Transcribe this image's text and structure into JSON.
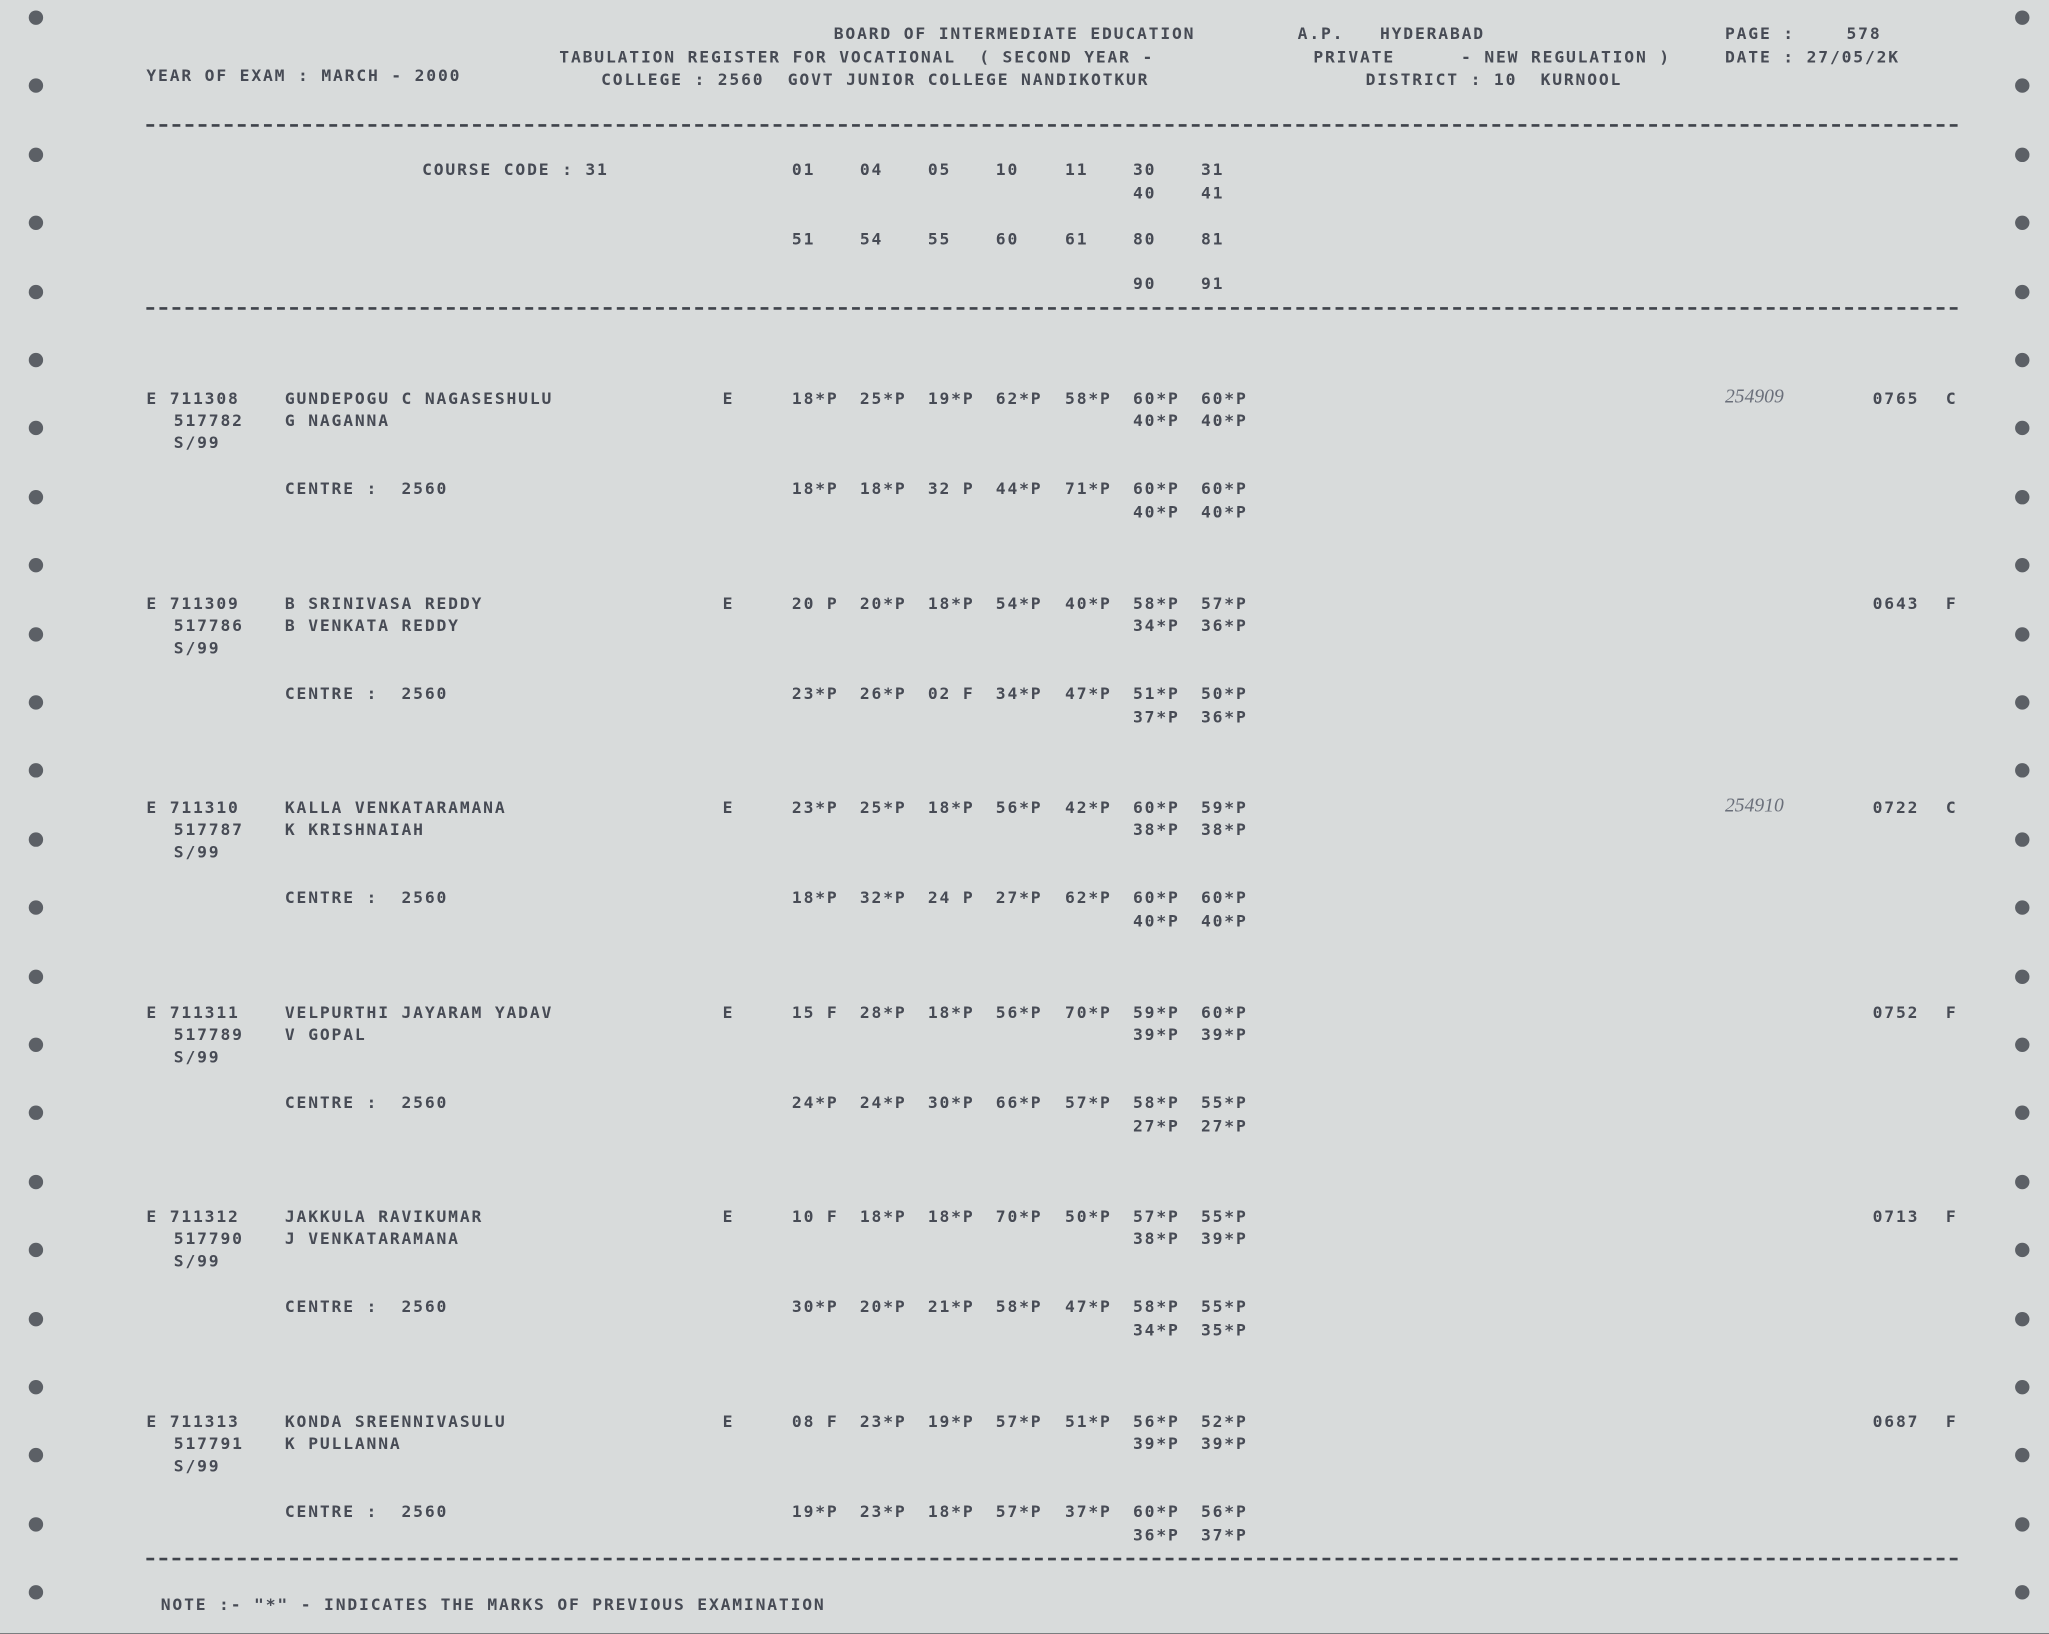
{
  "header": {
    "board": "BOARD OF INTERMEDIATE EDUCATION",
    "state": "A.P.",
    "city": "HYDERABAD",
    "page_label": "PAGE :",
    "page": "578",
    "register": "TABULATION REGISTER FOR VOCATIONAL  ( SECOND YEAR -",
    "mode": "PRIVATE",
    "regulation": "- NEW REGULATION )",
    "date": "DATE : 27/05/2K",
    "exam": "YEAR OF EXAM : MARCH - 2000",
    "college": "COLLEGE : 2560  GOVT JUNIOR COLLEGE NANDIKOTKUR",
    "district": "DISTRICT : 10  KURNOOL"
  },
  "course": {
    "label": "COURSE CODE : 31",
    "codes1": [
      "01",
      "04",
      "05",
      "10",
      "11",
      "30",
      "31"
    ],
    "codes1b": [
      "40",
      "41"
    ],
    "codes2": [
      "51",
      "54",
      "55",
      "60",
      "61",
      "80",
      "81"
    ],
    "codes2b": [
      "90",
      "91"
    ]
  },
  "students": [
    {
      "roll": "E 711308",
      "name": "GUNDEPOGU C NAGASESHULU",
      "hall": "517782",
      "father": "G NAGANNA",
      "session": "S/99",
      "medium": "E",
      "marks": [
        "18*P",
        "25*P",
        "19*P",
        "62*P",
        "58*P",
        "60*P",
        "60*P"
      ],
      "marks_b": [
        "40*P",
        "40*P"
      ],
      "centre": "CENTRE :  2560",
      "marks2": [
        "18*P",
        "18*P",
        "32 P",
        "44*P",
        "71*P",
        "60*P",
        "60*P"
      ],
      "marks2_b": [
        "40*P",
        "40*P"
      ],
      "handwritten": "254909",
      "total": "0765",
      "result": "C"
    },
    {
      "roll": "E 711309",
      "name": "B SRINIVASA REDDY",
      "hall": "517786",
      "father": "B VENKATA REDDY",
      "session": "S/99",
      "medium": "E",
      "marks": [
        "20 P",
        "20*P",
        "18*P",
        "54*P",
        "40*P",
        "58*P",
        "57*P"
      ],
      "marks_b": [
        "34*P",
        "36*P"
      ],
      "centre": "CENTRE :  2560",
      "marks2": [
        "23*P",
        "26*P",
        "02 F",
        "34*P",
        "47*P",
        "51*P",
        "50*P"
      ],
      "marks2_b": [
        "37*P",
        "36*P"
      ],
      "total": "0643",
      "result": "F"
    },
    {
      "roll": "E 711310",
      "name": "KALLA VENKATARAMANA",
      "hall": "517787",
      "father": "K KRISHNAIAH",
      "session": "S/99",
      "medium": "E",
      "marks": [
        "23*P",
        "25*P",
        "18*P",
        "56*P",
        "42*P",
        "60*P",
        "59*P"
      ],
      "marks_b": [
        "38*P",
        "38*P"
      ],
      "centre": "CENTRE :  2560",
      "marks2": [
        "18*P",
        "32*P",
        "24 P",
        "27*P",
        "62*P",
        "60*P",
        "60*P"
      ],
      "marks2_b": [
        "40*P",
        "40*P"
      ],
      "handwritten": "254910",
      "total": "0722",
      "result": "C"
    },
    {
      "roll": "E 711311",
      "name": "VELPURTHI JAYARAM YADAV",
      "hall": "517789",
      "father": "V GOPAL",
      "session": "S/99",
      "medium": "E",
      "marks": [
        "15 F",
        "28*P",
        "18*P",
        "56*P",
        "70*P",
        "59*P",
        "60*P"
      ],
      "marks_b": [
        "39*P",
        "39*P"
      ],
      "centre": "CENTRE :  2560",
      "marks2": [
        "24*P",
        "24*P",
        "30*P",
        "66*P",
        "57*P",
        "58*P",
        "55*P"
      ],
      "marks2_b": [
        "27*P",
        "27*P"
      ],
      "total": "0752",
      "result": "F"
    },
    {
      "roll": "E 711312",
      "name": "JAKKULA RAVIKUMAR",
      "hall": "517790",
      "father": "J VENKATARAMANA",
      "session": "S/99",
      "medium": "E",
      "marks": [
        "10 F",
        "18*P",
        "18*P",
        "70*P",
        "50*P",
        "57*P",
        "55*P"
      ],
      "marks_b": [
        "38*P",
        "39*P"
      ],
      "centre": "CENTRE :  2560",
      "marks2": [
        "30*P",
        "20*P",
        "21*P",
        "58*P",
        "47*P",
        "58*P",
        "55*P"
      ],
      "marks2_b": [
        "34*P",
        "35*P"
      ],
      "total": "0713",
      "result": "F"
    },
    {
      "roll": "E 711313",
      "name": "KONDA SREENNIVASULU",
      "hall": "517791",
      "father": "K PULLANNA",
      "session": "S/99",
      "medium": "E",
      "marks": [
        "08 F",
        "23*P",
        "19*P",
        "57*P",
        "51*P",
        "56*P",
        "52*P"
      ],
      "marks_b": [
        "39*P",
        "39*P"
      ],
      "centre": "CENTRE :  2560",
      "marks2": [
        "19*P",
        "23*P",
        "18*P",
        "57*P",
        "37*P",
        "60*P",
        "56*P"
      ],
      "marks2_b": [
        "36*P",
        "37*P"
      ],
      "total": "0687",
      "result": "F"
    }
  ],
  "note": "NOTE :- \"*\" - INDICATES THE MARKS OF PREVIOUS EXAMINATION"
}
